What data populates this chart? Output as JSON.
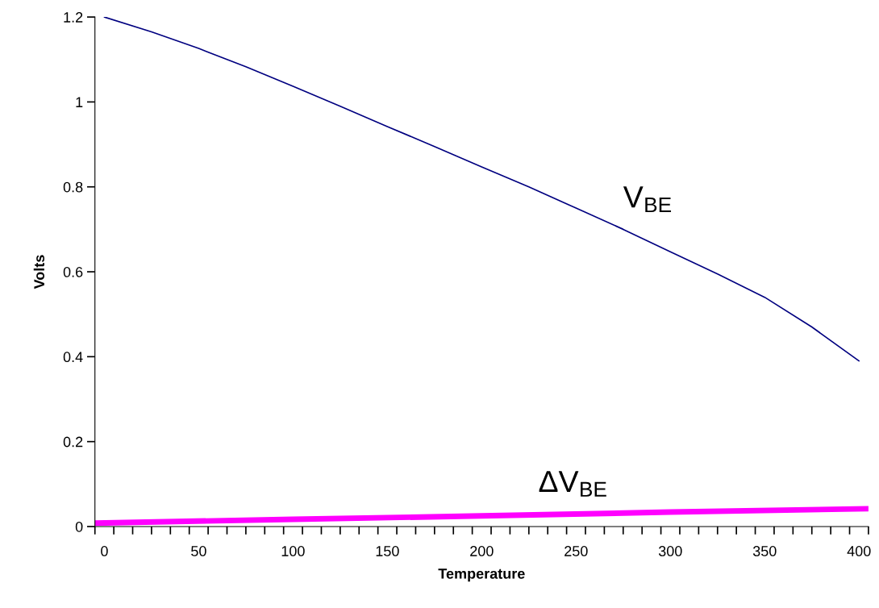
{
  "chart_data": {
    "type": "line",
    "xlabel": "Temperature",
    "ylabel": "Volts",
    "xlim": [
      -5,
      405
    ],
    "ylim": [
      0,
      1.2
    ],
    "xticks": [
      {
        "value": -5,
        "label": null
      },
      {
        "value": 0,
        "label": "0"
      },
      {
        "value": 5,
        "label": null
      },
      {
        "value": 15,
        "label": null
      },
      {
        "value": 25,
        "label": null
      },
      {
        "value": 35,
        "label": null
      },
      {
        "value": 45,
        "label": null
      },
      {
        "value": 50,
        "label": "50"
      },
      {
        "value": 55,
        "label": null
      },
      {
        "value": 65,
        "label": null
      },
      {
        "value": 75,
        "label": null
      },
      {
        "value": 85,
        "label": null
      },
      {
        "value": 95,
        "label": null
      },
      {
        "value": 100,
        "label": "100"
      },
      {
        "value": 105,
        "label": null
      },
      {
        "value": 115,
        "label": null
      },
      {
        "value": 125,
        "label": null
      },
      {
        "value": 135,
        "label": null
      },
      {
        "value": 145,
        "label": null
      },
      {
        "value": 150,
        "label": "150"
      },
      {
        "value": 155,
        "label": null
      },
      {
        "value": 165,
        "label": null
      },
      {
        "value": 175,
        "label": null
      },
      {
        "value": 185,
        "label": null
      },
      {
        "value": 195,
        "label": null
      },
      {
        "value": 200,
        "label": "200"
      },
      {
        "value": 205,
        "label": null
      },
      {
        "value": 215,
        "label": null
      },
      {
        "value": 225,
        "label": null
      },
      {
        "value": 235,
        "label": null
      },
      {
        "value": 245,
        "label": null
      },
      {
        "value": 250,
        "label": "250"
      },
      {
        "value": 255,
        "label": null
      },
      {
        "value": 265,
        "label": null
      },
      {
        "value": 275,
        "label": null
      },
      {
        "value": 285,
        "label": null
      },
      {
        "value": 295,
        "label": null
      },
      {
        "value": 300,
        "label": "300"
      },
      {
        "value": 305,
        "label": null
      },
      {
        "value": 315,
        "label": null
      },
      {
        "value": 325,
        "label": null
      },
      {
        "value": 335,
        "label": null
      },
      {
        "value": 345,
        "label": null
      },
      {
        "value": 350,
        "label": "350"
      },
      {
        "value": 355,
        "label": null
      },
      {
        "value": 365,
        "label": null
      },
      {
        "value": 375,
        "label": null
      },
      {
        "value": 385,
        "label": null
      },
      {
        "value": 395,
        "label": null
      },
      {
        "value": 400,
        "label": "400"
      },
      {
        "value": 405,
        "label": null
      }
    ],
    "yticks": [
      0,
      0.2,
      0.4,
      0.6,
      0.8,
      1,
      1.2
    ],
    "grid": false,
    "legend": false,
    "marker": "none",
    "line_style": "solid",
    "series": [
      {
        "name": "V$_{BE}$",
        "color": "#000080",
        "x": [
          0,
          25,
          50,
          75,
          100,
          125,
          150,
          175,
          200,
          225,
          250,
          275,
          300,
          325,
          350,
          375,
          400
        ],
        "values": [
          1.2,
          1.165,
          1.126,
          1.083,
          1.037,
          0.99,
          0.942,
          0.895,
          0.847,
          0.8,
          0.75,
          0.7,
          0.647,
          0.595,
          0.54,
          0.47,
          0.39
        ]
      },
      {
        "name": "ΔV$_{BE}$",
        "color": "#ff00ff",
        "x": [
          -5,
          100,
          200,
          300,
          405
        ],
        "values": [
          0.008,
          0.017,
          0.025,
          0.034,
          0.042
        ]
      }
    ]
  }
}
